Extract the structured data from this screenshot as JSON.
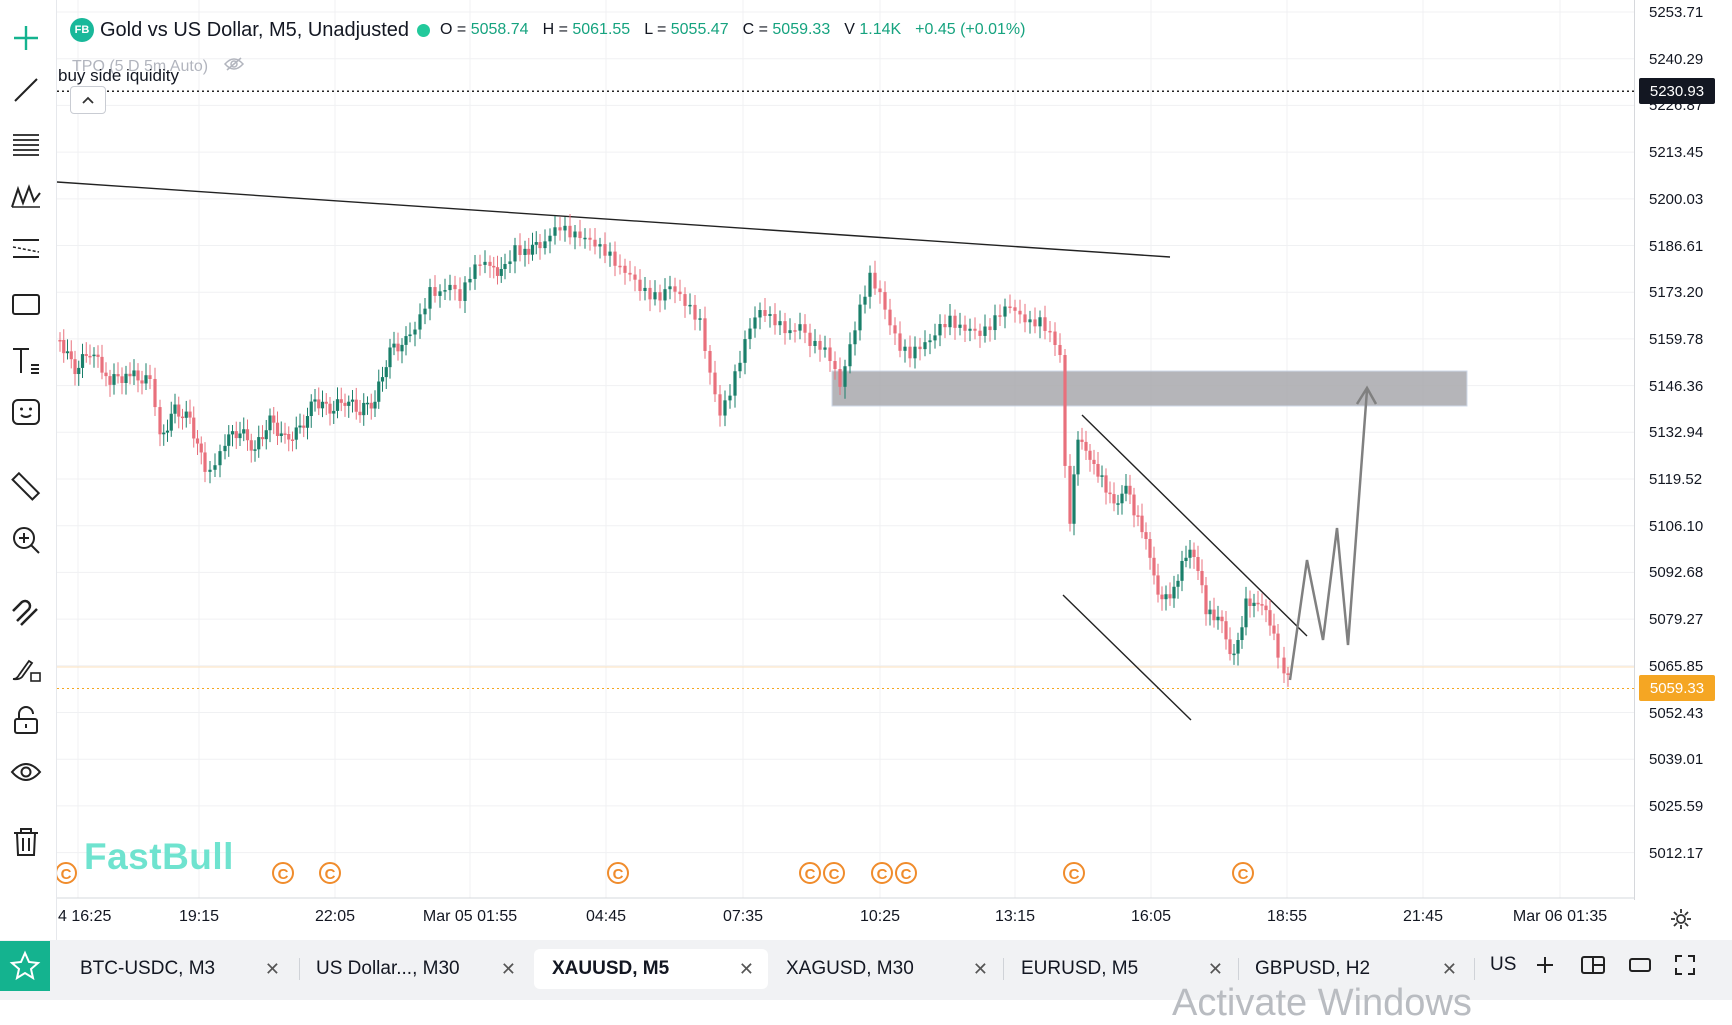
{
  "chart_header": {
    "badge": "FB",
    "title": "Gold vs US Dollar, M5, Unadjusted",
    "o_label": "O =",
    "o_value": "5058.74",
    "h_label": "H =",
    "h_value": "5061.55",
    "l_label": "L =",
    "l_value": "5055.47",
    "c_label": "C =",
    "c_value": "5059.33",
    "v_label": "V",
    "v_value": "1.14K",
    "change": "+0.45 (+0.01%)"
  },
  "indicator": {
    "label": "TPO (5 D 5m Auto)",
    "icon": "eye-off-icon"
  },
  "annotation": "buy side iquidity",
  "collapse_icon": "chevron-up-icon",
  "watermark": "FastBull",
  "price_axis": {
    "labels": [
      "5253.71",
      "5240.29",
      "5226.87",
      "5213.45",
      "5200.03",
      "5186.61",
      "5173.20",
      "5159.78",
      "5146.36",
      "5132.94",
      "5119.52",
      "5106.10",
      "5092.68",
      "5079.27",
      "5065.85",
      "5052.43",
      "5039.01",
      "5025.59",
      "5012.17"
    ],
    "current_tag": "5230.93",
    "last_price_tag": "5059.33"
  },
  "time_axis": [
    "4 16:25",
    "19:15",
    "22:05",
    "Mar 05 01:55",
    "04:45",
    "07:35",
    "10:25",
    "13:15",
    "16:05",
    "18:55",
    "21:45",
    "Mar 06 01:35"
  ],
  "event_marker": "C",
  "tabs": [
    {
      "label": "BTC-USDC, M3"
    },
    {
      "label": "US Dollar..., M30"
    },
    {
      "label": "XAUUSD, M5"
    },
    {
      "label": "XAGUSD, M30"
    },
    {
      "label": "EURUSD, M5"
    },
    {
      "label": "GBPUSD, H2"
    }
  ],
  "tabs_right": {
    "region": "US"
  },
  "toolbar_icons": [
    "crosshair-icon",
    "trendline-icon",
    "fib-icon",
    "pattern-icon",
    "forecast-icon",
    "rectangle-icon",
    "text-icon",
    "emoji-icon",
    "ruler-icon",
    "zoom-in-icon",
    "magnet-icon",
    "brush-lock-icon",
    "lock-icon",
    "eye-icon",
    "trash-icon"
  ],
  "colors": {
    "up": "#1a7f6a",
    "down": "#e8707c",
    "accent": "#14b38f",
    "event": "#f08c2c"
  },
  "os_watermark": "Activate Windows"
}
